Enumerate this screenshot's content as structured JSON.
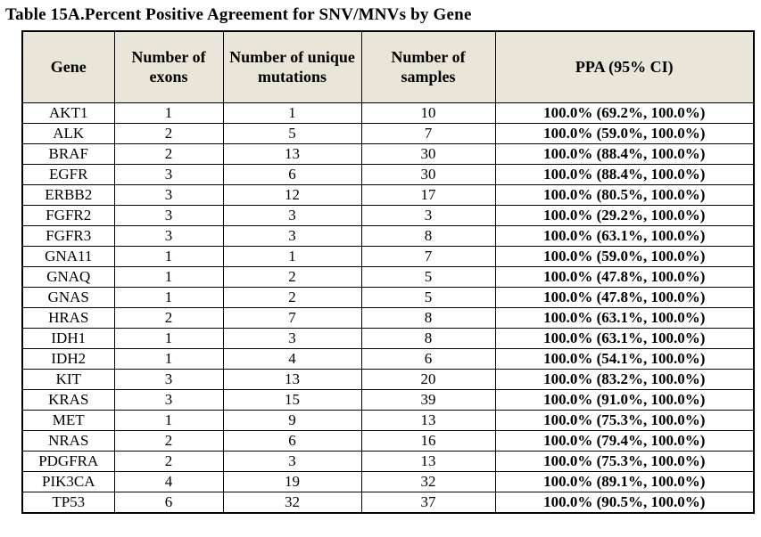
{
  "title": "Table 15A.Percent Positive Agreement for SNV/MNVs by Gene",
  "colors": {
    "header_background": "#e9e5d8",
    "border": "#000000",
    "text": "#000000"
  },
  "table": {
    "headers": [
      "Gene",
      "Number of exons",
      "Number of unique mutations",
      "Number of samples",
      "PPA (95% CI)"
    ],
    "rows": [
      {
        "gene": "AKT1",
        "exons": "1",
        "unique_mutations": "1",
        "samples": "10",
        "ppa": "100.0% (69.2%, 100.0%)"
      },
      {
        "gene": "ALK",
        "exons": "2",
        "unique_mutations": "5",
        "samples": "7",
        "ppa": "100.0% (59.0%, 100.0%)"
      },
      {
        "gene": "BRAF",
        "exons": "2",
        "unique_mutations": "13",
        "samples": "30",
        "ppa": "100.0% (88.4%, 100.0%)"
      },
      {
        "gene": "EGFR",
        "exons": "3",
        "unique_mutations": "6",
        "samples": "30",
        "ppa": "100.0% (88.4%, 100.0%)"
      },
      {
        "gene": "ERBB2",
        "exons": "3",
        "unique_mutations": "12",
        "samples": "17",
        "ppa": "100.0% (80.5%, 100.0%)"
      },
      {
        "gene": "FGFR2",
        "exons": "3",
        "unique_mutations": "3",
        "samples": "3",
        "ppa": "100.0% (29.2%, 100.0%)"
      },
      {
        "gene": "FGFR3",
        "exons": "3",
        "unique_mutations": "3",
        "samples": "8",
        "ppa": "100.0% (63.1%, 100.0%)"
      },
      {
        "gene": "GNA11",
        "exons": "1",
        "unique_mutations": "1",
        "samples": "7",
        "ppa": "100.0% (59.0%, 100.0%)"
      },
      {
        "gene": "GNAQ",
        "exons": "1",
        "unique_mutations": "2",
        "samples": "5",
        "ppa": "100.0% (47.8%, 100.0%)"
      },
      {
        "gene": "GNAS",
        "exons": "1",
        "unique_mutations": "2",
        "samples": "5",
        "ppa": "100.0% (47.8%, 100.0%)"
      },
      {
        "gene": "HRAS",
        "exons": "2",
        "unique_mutations": "7",
        "samples": "8",
        "ppa": "100.0% (63.1%, 100.0%)"
      },
      {
        "gene": "IDH1",
        "exons": "1",
        "unique_mutations": "3",
        "samples": "8",
        "ppa": "100.0% (63.1%, 100.0%)"
      },
      {
        "gene": "IDH2",
        "exons": "1",
        "unique_mutations": "4",
        "samples": "6",
        "ppa": "100.0% (54.1%, 100.0%)"
      },
      {
        "gene": "KIT",
        "exons": "3",
        "unique_mutations": "13",
        "samples": "20",
        "ppa": "100.0% (83.2%, 100.0%)"
      },
      {
        "gene": "KRAS",
        "exons": "3",
        "unique_mutations": "15",
        "samples": "39",
        "ppa": "100.0% (91.0%, 100.0%)"
      },
      {
        "gene": "MET",
        "exons": "1",
        "unique_mutations": "9",
        "samples": "13",
        "ppa": "100.0% (75.3%, 100.0%)"
      },
      {
        "gene": "NRAS",
        "exons": "2",
        "unique_mutations": "6",
        "samples": "16",
        "ppa": "100.0% (79.4%, 100.0%)"
      },
      {
        "gene": "PDGFRA",
        "exons": "2",
        "unique_mutations": "3",
        "samples": "13",
        "ppa": "100.0% (75.3%, 100.0%)"
      },
      {
        "gene": "PIK3CA",
        "exons": "4",
        "unique_mutations": "19",
        "samples": "32",
        "ppa": "100.0% (89.1%, 100.0%)"
      },
      {
        "gene": "TP53",
        "exons": "6",
        "unique_mutations": "32",
        "samples": "37",
        "ppa": "100.0% (90.5%, 100.0%)"
      }
    ]
  }
}
